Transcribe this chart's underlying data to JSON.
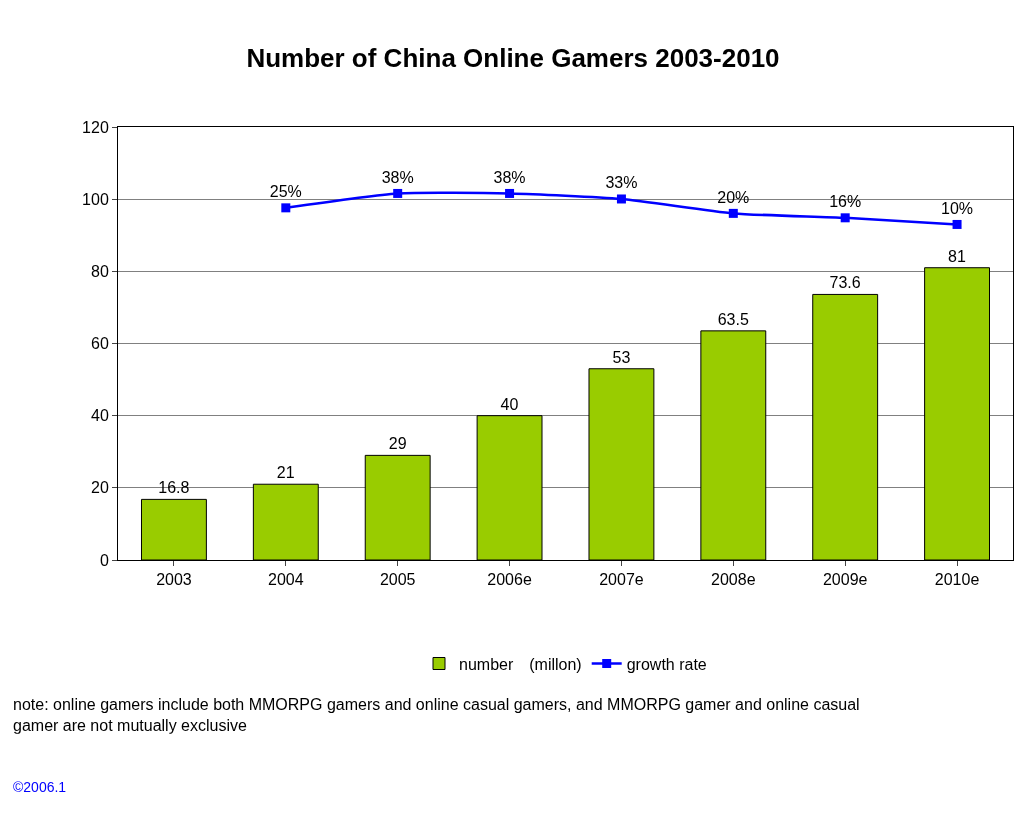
{
  "chart_data": {
    "type": "bar",
    "title": "Number of China Online Gamers 2003-2010",
    "categories": [
      "2003",
      "2004",
      "2005",
      "2006e",
      "2007e",
      "2008e",
      "2009e",
      "2010e"
    ],
    "series": [
      {
        "name": "number　(millon)",
        "color": "#99cc00",
        "values": [
          16.8,
          21,
          29,
          40,
          53,
          63.5,
          73.6,
          81
        ],
        "data_labels": true
      },
      {
        "name": "growth rate",
        "type": "line",
        "axis": "y2",
        "color": "#0000ff",
        "marker": "square",
        "values": [
          null,
          25,
          38,
          38,
          33,
          20,
          16,
          10
        ],
        "value_labels": [
          null,
          "25%",
          "38%",
          "38%",
          "33%",
          "20%",
          "16%",
          "10%"
        ]
      }
    ],
    "ylim": [
      0,
      120
    ],
    "yticks": [
      0,
      20,
      40,
      60,
      80,
      100,
      120
    ],
    "y2lim": [
      -293,
      98
    ],
    "grid": "y",
    "legend": "bottom",
    "annotations": [
      "note: online gamers include both MMORPG gamers and online casual gamers, and MMORPG gamer and online casual gamer are not mutually exclusive",
      "©2006.1"
    ]
  }
}
